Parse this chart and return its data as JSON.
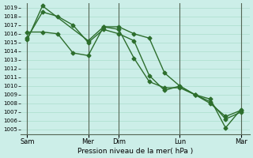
{
  "background_color": "#cceee8",
  "grid_color": "#aaddcc",
  "line_color": "#2d6e2d",
  "title": "Pression niveau de la mer( hPa )",
  "ylim": [
    1004.5,
    1019.5
  ],
  "yticks": [
    1005,
    1006,
    1007,
    1008,
    1009,
    1010,
    1011,
    1012,
    1013,
    1014,
    1015,
    1016,
    1017,
    1018,
    1019
  ],
  "x_day_labels": [
    "Sam",
    "Mer",
    "Dim",
    "Lun",
    "Mar"
  ],
  "x_day_positions": [
    0,
    96,
    144,
    240,
    336
  ],
  "xlim": [
    -10,
    350
  ],
  "series": [
    {
      "x": [
        0,
        24,
        48,
        72,
        96,
        120,
        144,
        168,
        192,
        216,
        240,
        264,
        288,
        312,
        336
      ],
      "y": [
        1015.5,
        1018.5,
        1018.0,
        1017.0,
        1015.0,
        1016.5,
        1016.0,
        1015.2,
        1011.2,
        1009.5,
        1010.0,
        1009.0,
        1008.0,
        1006.5,
        1007.2
      ]
    },
    {
      "x": [
        0,
        24,
        48,
        72,
        96,
        120,
        144,
        168,
        192,
        216,
        240,
        264,
        288,
        312,
        336
      ],
      "y": [
        1016.2,
        1016.2,
        1016.0,
        1013.8,
        1013.5,
        1016.8,
        1016.5,
        1013.2,
        1010.5,
        1009.8,
        1009.8,
        1009.0,
        1008.2,
        1006.2,
        1007.0
      ]
    },
    {
      "x": [
        0,
        24,
        96,
        120,
        144,
        168,
        192,
        216,
        240,
        264,
        288,
        312,
        336
      ],
      "y": [
        1015.3,
        1019.2,
        1015.2,
        1016.8,
        1016.8,
        1016.0,
        1015.5,
        1011.5,
        1010.0,
        1009.0,
        1008.5,
        1005.2,
        1007.3
      ]
    }
  ],
  "vline_positions": [
    96,
    144,
    240,
    336
  ],
  "vline_color": "#556655",
  "marker": "D",
  "markersize": 2.5,
  "linewidth": 1.0
}
